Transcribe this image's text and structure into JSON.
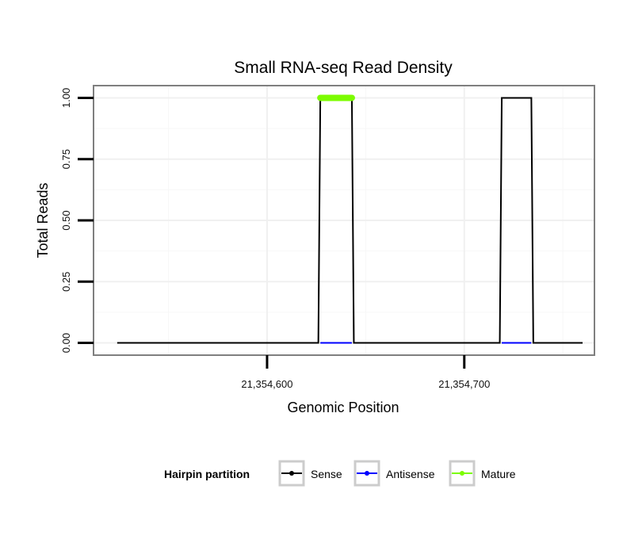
{
  "chart_data": {
    "type": "line",
    "title": "Small RNA-seq Read Density",
    "xlabel": "Genomic Position",
    "ylabel": "Total Reads",
    "xlim": [
      21354512,
      21354766
    ],
    "ylim": [
      -0.05,
      1.05
    ],
    "x_ticks": [
      21354600,
      21354700
    ],
    "x_tick_labels": [
      "21,354,600",
      "21,354,700"
    ],
    "y_ticks": [
      0,
      0.25,
      0.5,
      0.75,
      1
    ],
    "y_tick_labels": [
      "0.00",
      "0.25",
      "0.50",
      "0.75",
      "1.00"
    ],
    "grid": true,
    "legend": {
      "title": "Hairpin partition",
      "position": "bottom",
      "entries": [
        {
          "name": "Sense",
          "color": "#000000"
        },
        {
          "name": "Antisense",
          "color": "#0000ff"
        },
        {
          "name": "Mature",
          "color": "#7cfc00"
        }
      ]
    },
    "series": [
      {
        "name": "Sense",
        "color": "#000000",
        "x": [
          21354524,
          21354626,
          21354627,
          21354643,
          21354644,
          21354718,
          21354719,
          21354734,
          21354735,
          21354760
        ],
        "y": [
          0,
          0,
          1,
          1,
          0,
          0,
          1,
          1,
          0,
          0
        ]
      },
      {
        "name": "Antisense",
        "color": "#0000ff",
        "segments": [
          {
            "x": [
              21354627,
              21354643
            ],
            "y": [
              0,
              0
            ]
          },
          {
            "x": [
              21354719,
              21354734
            ],
            "y": [
              0,
              0
            ]
          }
        ]
      },
      {
        "name": "Mature",
        "color": "#7cfc00",
        "segments": [
          {
            "x": [
              21354627,
              21354643
            ],
            "y": [
              1,
              1
            ]
          }
        ]
      }
    ]
  }
}
